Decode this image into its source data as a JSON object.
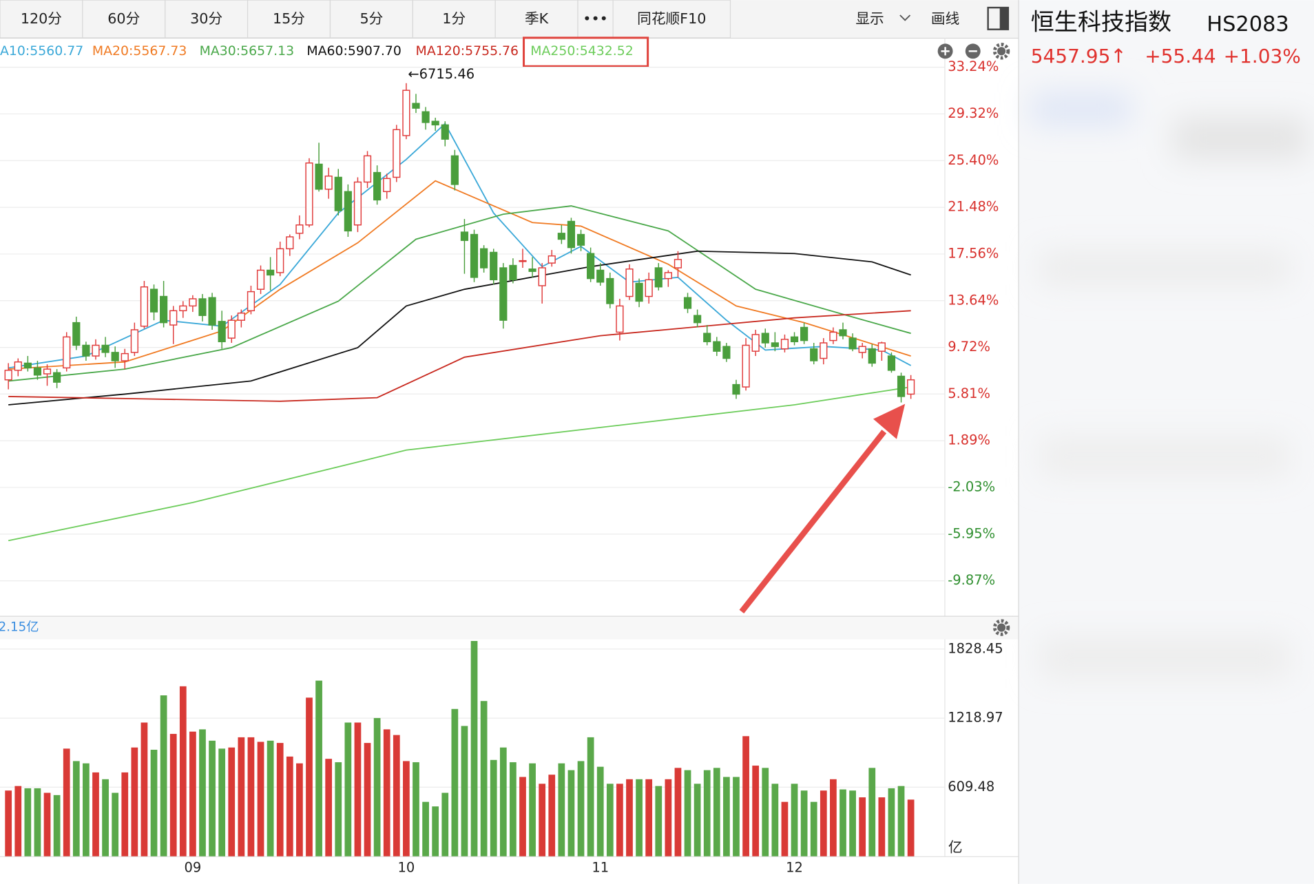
{
  "toolbar": {
    "tabs": [
      "120分",
      "60分",
      "30分",
      "15分",
      "5分",
      "1分",
      "季K",
      "•••",
      "同花顺F10"
    ],
    "tools": [
      "显示",
      "画线"
    ]
  },
  "quote": {
    "name": "恒生科技指数",
    "code": "HS2083",
    "price": "5457.95↑",
    "change": "+55.44",
    "change_pct": "+1.03%"
  },
  "chart_data": [
    {
      "type": "candlestick",
      "up_color": "#e03a3a",
      "down_color": "#4a9e3c",
      "grid": true,
      "ylim": [
        -12.6,
        33.6
      ],
      "yticks": [
        {
          "value": 33.24,
          "label": "33.24%"
        },
        {
          "value": 29.32,
          "label": "29.32%"
        },
        {
          "value": 25.4,
          "label": "25.40%"
        },
        {
          "value": 21.48,
          "label": "21.48%"
        },
        {
          "value": 17.56,
          "label": "17.56%"
        },
        {
          "value": 13.64,
          "label": "13.64%"
        },
        {
          "value": 9.72,
          "label": "9.72%"
        },
        {
          "value": 5.81,
          "label": "5.81%"
        },
        {
          "value": 1.89,
          "label": "1.89%"
        },
        {
          "value": -2.03,
          "label": "-2.03%"
        },
        {
          "value": -5.95,
          "label": "-5.95%"
        },
        {
          "value": -9.87,
          "label": "-9.87%"
        }
      ],
      "categories": [
        null,
        null,
        null,
        null,
        null,
        null,
        null,
        null,
        null,
        null,
        null,
        null,
        null,
        null,
        null,
        null,
        null,
        null,
        null,
        "09",
        null,
        null,
        null,
        null,
        null,
        null,
        null,
        null,
        null,
        null,
        null,
        null,
        null,
        null,
        null,
        null,
        null,
        null,
        null,
        null,
        null,
        "10",
        null,
        null,
        null,
        null,
        null,
        null,
        null,
        null,
        null,
        null,
        null,
        null,
        null,
        null,
        null,
        null,
        null,
        null,
        null,
        "11",
        null,
        null,
        null,
        null,
        null,
        null,
        null,
        null,
        null,
        null,
        null,
        null,
        null,
        null,
        null,
        null,
        null,
        null,
        null,
        "12",
        null,
        null,
        null,
        null,
        null,
        null,
        null,
        null,
        null,
        null,
        null,
        null
      ],
      "ohlc": [
        [
          7.0,
          8.4,
          6.2,
          7.8
        ],
        [
          7.8,
          8.8,
          7.3,
          8.5
        ],
        [
          8.4,
          9.0,
          7.7,
          8.0
        ],
        [
          8.0,
          8.6,
          7.0,
          7.4
        ],
        [
          7.5,
          8.3,
          6.5,
          7.9
        ],
        [
          7.6,
          7.9,
          6.3,
          6.8
        ],
        [
          8.0,
          11.0,
          7.7,
          10.6
        ],
        [
          11.8,
          12.3,
          9.5,
          9.9
        ],
        [
          9.9,
          10.2,
          8.6,
          9.0
        ],
        [
          9.0,
          10.4,
          8.7,
          9.9
        ],
        [
          9.9,
          10.6,
          8.9,
          9.3
        ],
        [
          9.3,
          9.8,
          8.0,
          8.6
        ],
        [
          8.6,
          9.6,
          7.9,
          9.2
        ],
        [
          9.3,
          11.8,
          9.0,
          11.2
        ],
        [
          11.5,
          15.3,
          11.3,
          14.8
        ],
        [
          14.6,
          15.0,
          12.0,
          12.7
        ],
        [
          14.0,
          15.3,
          11.4,
          11.8
        ],
        [
          11.6,
          13.2,
          10.0,
          12.8
        ],
        [
          12.8,
          13.6,
          12.2,
          13.2
        ],
        [
          13.2,
          14.1,
          12.7,
          13.8
        ],
        [
          13.8,
          14.2,
          11.9,
          12.4
        ],
        [
          13.9,
          14.3,
          11.2,
          11.6
        ],
        [
          11.9,
          12.8,
          9.6,
          10.2
        ],
        [
          10.5,
          12.4,
          10.1,
          12.0
        ],
        [
          12.0,
          12.9,
          11.4,
          12.6
        ],
        [
          12.8,
          14.9,
          12.5,
          14.4
        ],
        [
          14.6,
          16.6,
          14.2,
          16.2
        ],
        [
          16.2,
          17.3,
          14.5,
          15.8
        ],
        [
          16.0,
          18.6,
          15.7,
          18.0
        ],
        [
          18.0,
          19.2,
          17.4,
          19.0
        ],
        [
          19.3,
          20.8,
          18.8,
          20.0
        ],
        [
          20.0,
          25.6,
          19.8,
          25.2
        ],
        [
          25.1,
          26.9,
          22.8,
          23.0
        ],
        [
          23.0,
          24.8,
          22.2,
          24.1
        ],
        [
          24.0,
          24.7,
          20.8,
          21.2
        ],
        [
          22.8,
          23.4,
          19.0,
          19.5
        ],
        [
          20.0,
          24.0,
          19.4,
          23.6
        ],
        [
          23.6,
          26.2,
          23.1,
          25.8
        ],
        [
          24.4,
          25.0,
          21.7,
          22.1
        ],
        [
          22.8,
          24.3,
          22.2,
          23.9
        ],
        [
          24.0,
          28.4,
          23.6,
          28.0
        ],
        [
          27.5,
          31.9,
          27.2,
          31.3
        ],
        [
          30.2,
          31.0,
          29.4,
          29.8
        ],
        [
          29.5,
          29.9,
          28.0,
          28.6
        ],
        [
          28.7,
          29.0,
          27.9,
          28.4
        ],
        [
          28.4,
          28.7,
          26.6,
          27.2
        ],
        [
          25.8,
          26.3,
          22.9,
          23.4
        ],
        [
          19.4,
          20.5,
          15.9,
          18.7
        ],
        [
          19.2,
          19.6,
          15.2,
          15.6
        ],
        [
          18.0,
          18.3,
          16.0,
          16.4
        ],
        [
          17.7,
          18.0,
          15.0,
          15.4
        ],
        [
          16.4,
          16.8,
          11.3,
          12.0
        ],
        [
          16.6,
          17.2,
          15.1,
          15.4
        ],
        [
          17.0,
          18.0,
          16.4,
          17.0
        ],
        [
          16.3,
          17.3,
          15.6,
          16.1
        ],
        [
          14.9,
          16.8,
          13.4,
          16.4
        ],
        [
          16.8,
          17.9,
          16.5,
          17.4
        ],
        [
          19.3,
          20.0,
          18.4,
          18.8
        ],
        [
          20.3,
          20.6,
          17.6,
          18.1
        ],
        [
          19.2,
          19.6,
          17.8,
          18.3
        ],
        [
          17.6,
          18.1,
          15.2,
          15.5
        ],
        [
          16.2,
          16.8,
          14.9,
          15.2
        ],
        [
          15.5,
          16.0,
          13.0,
          13.4
        ],
        [
          11.0,
          13.8,
          10.3,
          13.2
        ],
        [
          14.0,
          16.7,
          13.7,
          16.3
        ],
        [
          15.1,
          15.5,
          13.1,
          13.6
        ],
        [
          14.0,
          16.0,
          13.4,
          15.4
        ],
        [
          16.4,
          16.8,
          14.5,
          14.8
        ],
        [
          15.5,
          16.2,
          14.8,
          16.0
        ],
        [
          16.4,
          17.8,
          15.6,
          17.1
        ],
        [
          13.9,
          14.3,
          12.6,
          13.0
        ],
        [
          12.4,
          12.9,
          11.4,
          11.8
        ],
        [
          10.9,
          11.6,
          9.9,
          10.2
        ],
        [
          10.2,
          10.6,
          9.0,
          9.4
        ],
        [
          9.8,
          10.1,
          8.5,
          8.8
        ],
        [
          6.6,
          7.0,
          5.4,
          5.8
        ],
        [
          6.4,
          10.5,
          6.1,
          9.9
        ],
        [
          9.4,
          11.2,
          9.0,
          10.8
        ],
        [
          10.9,
          11.3,
          9.7,
          10.1
        ],
        [
          10.1,
          11.0,
          9.4,
          9.8
        ],
        [
          9.6,
          10.8,
          9.3,
          10.4
        ],
        [
          10.6,
          11.0,
          9.9,
          10.2
        ],
        [
          11.4,
          11.8,
          10.0,
          10.3
        ],
        [
          9.6,
          10.1,
          8.3,
          8.6
        ],
        [
          8.8,
          10.5,
          8.3,
          10.1
        ],
        [
          10.3,
          11.4,
          10.0,
          11.0
        ],
        [
          11.2,
          11.8,
          10.4,
          10.7
        ],
        [
          10.5,
          10.9,
          9.4,
          9.6
        ],
        [
          9.3,
          10.1,
          8.8,
          9.8
        ],
        [
          9.6,
          10.0,
          8.1,
          8.4
        ],
        [
          9.4,
          10.2,
          8.6,
          10.1
        ],
        [
          9.0,
          9.3,
          7.6,
          7.8
        ],
        [
          7.3,
          7.6,
          5.1,
          5.6
        ],
        [
          5.8,
          7.4,
          5.4,
          7.0
        ]
      ],
      "series": [
        {
          "name": "A10:5560.77",
          "color": "#3aa8d8",
          "x": [
            0,
            8,
            16,
            22,
            28,
            34,
            41,
            45,
            50,
            55,
            59,
            64,
            69,
            74,
            78,
            84,
            90,
            93
          ],
          "values": [
            8.0,
            9.0,
            12.0,
            11.5,
            15.0,
            21.0,
            25.5,
            28.5,
            21.0,
            16.5,
            18.2,
            15.2,
            15.6,
            12.0,
            9.5,
            9.8,
            9.5,
            8.2
          ]
        },
        {
          "name": "MA20:5567.73",
          "color": "#f07a22",
          "x": [
            0,
            12,
            22,
            28,
            36,
            44,
            48,
            54,
            59,
            68,
            75,
            82,
            93
          ],
          "values": [
            7.9,
            8.5,
            11.1,
            14.6,
            18.5,
            23.7,
            22.3,
            20.2,
            19.9,
            16.7,
            13.2,
            11.8,
            9.0
          ]
        },
        {
          "name": "MA30:5657.13",
          "color": "#4aa84a",
          "x": [
            0,
            12,
            23,
            34,
            42,
            51,
            58,
            68,
            77,
            86,
            93
          ],
          "values": [
            6.9,
            7.9,
            9.7,
            13.6,
            18.8,
            20.9,
            21.6,
            19.5,
            14.6,
            12.5,
            10.9
          ]
        },
        {
          "name": "MA60:5907.70",
          "color": "#111111",
          "x": [
            0,
            12,
            25,
            36,
            41,
            47,
            60,
            71,
            81,
            89,
            93
          ],
          "values": [
            4.9,
            5.8,
            6.9,
            9.7,
            13.2,
            14.6,
            16.5,
            17.8,
            17.6,
            16.9,
            15.8
          ]
        },
        {
          "name": "MA120:5755.76",
          "color": "#c8281e",
          "x": [
            0,
            14,
            28,
            38,
            47,
            61,
            81,
            93
          ],
          "values": [
            5.6,
            5.4,
            5.2,
            5.5,
            8.9,
            10.7,
            12.2,
            12.8
          ]
        },
        {
          "name": "MA250:5432.52",
          "color": "#6ccc5a",
          "x": [
            0,
            19,
            41,
            61,
            81,
            93
          ],
          "values": [
            -6.5,
            -3.3,
            1.1,
            3.0,
            4.9,
            6.4
          ]
        }
      ],
      "annotations": [
        {
          "x": 41,
          "label": "←6715.46"
        }
      ]
    },
    {
      "type": "bar",
      "title": "2.15亿",
      "y_unit": "亿",
      "up_color": "#d93a36",
      "down_color": "#5aa84a",
      "ylim": [
        0,
        1900
      ],
      "yticks": [
        1828.45,
        1218.97,
        609.48
      ],
      "values": [
        580,
        620,
        600,
        600,
        560,
        540,
        950,
        840,
        820,
        740,
        680,
        560,
        740,
        960,
        1180,
        940,
        1420,
        1080,
        1500,
        1100,
        1120,
        1020,
        950,
        960,
        1050,
        1050,
        1010,
        1020,
        1000,
        880,
        820,
        1400,
        1550,
        860,
        830,
        1180,
        1180,
        1000,
        1220,
        1120,
        1070,
        840,
        830,
        480,
        440,
        560,
        1300,
        1150,
        1900,
        1370,
        850,
        960,
        830,
        700,
        820,
        640,
        720,
        820,
        760,
        840,
        1050,
        790,
        640,
        640,
        680,
        680,
        680,
        620,
        680,
        780,
        760,
        640,
        760,
        780,
        700,
        700,
        1060,
        800,
        780,
        640,
        480,
        640,
        580,
        480,
        580,
        680,
        590,
        580,
        520,
        780,
        520,
        600,
        620,
        500
      ]
    }
  ]
}
